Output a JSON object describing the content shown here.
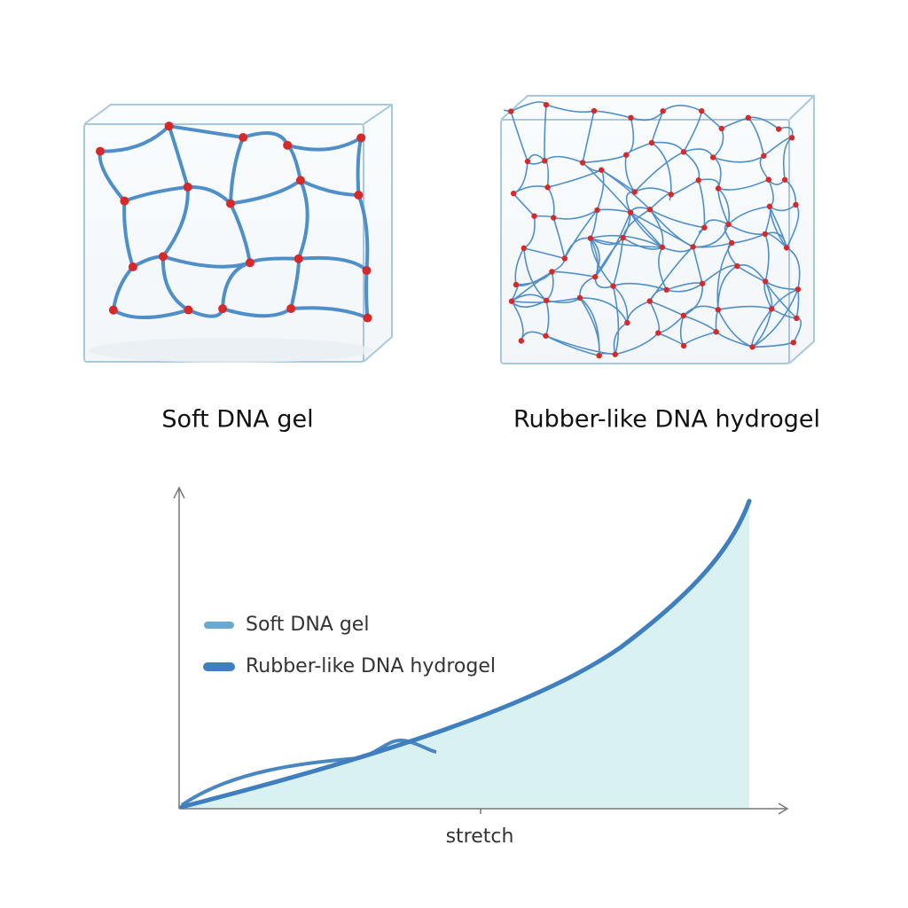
{
  "panels": [
    {
      "label": "Soft DNA gel"
    },
    {
      "label": "Rubber-like DNA hydrogel"
    }
  ],
  "plot": {
    "legend": [
      "Soft DNA gel",
      "Rubber-like DNA hydrogel"
    ],
    "x_label": "stretch"
  }
}
